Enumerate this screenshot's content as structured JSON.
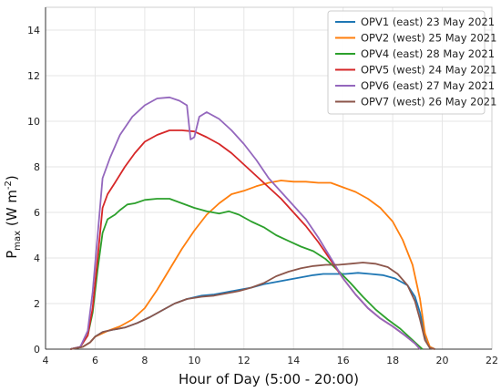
{
  "chart_data": {
    "type": "line",
    "xlabel": "Hour of Day (5:00 - 20:00)",
    "ylabel": {
      "base": "P",
      "sub": "max",
      "rest": " (W m",
      "sup": "-2",
      "close": ")"
    },
    "xlim": [
      4,
      22
    ],
    "ylim": [
      0,
      15
    ],
    "xticks": [
      "4",
      "6",
      "8",
      "10",
      "12",
      "14",
      "16",
      "18",
      "20",
      "22"
    ],
    "yticks": [
      "0",
      "2",
      "4",
      "6",
      "8",
      "10",
      "12",
      "14"
    ],
    "grid": true,
    "legend_position": "top-right",
    "series": [
      {
        "name": "OPV1 (east) 23 May 2021",
        "color": "#1f77b4",
        "points": [
          [
            5.0,
            0
          ],
          [
            5.5,
            0.1
          ],
          [
            5.8,
            0.3
          ],
          [
            6.0,
            0.55
          ],
          [
            6.3,
            0.75
          ],
          [
            6.7,
            0.85
          ],
          [
            7.2,
            0.95
          ],
          [
            7.7,
            1.15
          ],
          [
            8.2,
            1.4
          ],
          [
            8.7,
            1.7
          ],
          [
            9.2,
            2.0
          ],
          [
            9.7,
            2.2
          ],
          [
            10.3,
            2.35
          ],
          [
            10.8,
            2.4
          ],
          [
            11.3,
            2.5
          ],
          [
            11.8,
            2.6
          ],
          [
            12.3,
            2.7
          ],
          [
            12.8,
            2.85
          ],
          [
            13.3,
            2.95
          ],
          [
            13.8,
            3.05
          ],
          [
            14.3,
            3.15
          ],
          [
            14.8,
            3.25
          ],
          [
            15.2,
            3.3
          ],
          [
            15.6,
            3.3
          ],
          [
            16.1,
            3.3
          ],
          [
            16.6,
            3.35
          ],
          [
            17.1,
            3.3
          ],
          [
            17.6,
            3.25
          ],
          [
            18.1,
            3.1
          ],
          [
            18.6,
            2.8
          ],
          [
            18.9,
            2.3
          ],
          [
            19.1,
            1.6
          ],
          [
            19.3,
            0.6
          ],
          [
            19.5,
            0.1
          ],
          [
            19.7,
            0
          ]
        ]
      },
      {
        "name": "OPV2 (west) 25 May 2021",
        "color": "#ff7f0e",
        "points": [
          [
            5.0,
            0
          ],
          [
            5.5,
            0.1
          ],
          [
            5.8,
            0.3
          ],
          [
            6.0,
            0.55
          ],
          [
            6.5,
            0.8
          ],
          [
            7.0,
            1.0
          ],
          [
            7.5,
            1.3
          ],
          [
            8.0,
            1.8
          ],
          [
            8.5,
            2.6
          ],
          [
            9.0,
            3.5
          ],
          [
            9.5,
            4.4
          ],
          [
            10.0,
            5.2
          ],
          [
            10.5,
            5.9
          ],
          [
            11.0,
            6.4
          ],
          [
            11.5,
            6.8
          ],
          [
            12.0,
            6.95
          ],
          [
            12.5,
            7.15
          ],
          [
            13.0,
            7.3
          ],
          [
            13.5,
            7.4
          ],
          [
            14.0,
            7.35
          ],
          [
            14.5,
            7.35
          ],
          [
            15.0,
            7.3
          ],
          [
            15.5,
            7.3
          ],
          [
            16.0,
            7.1
          ],
          [
            16.5,
            6.9
          ],
          [
            17.0,
            6.6
          ],
          [
            17.5,
            6.2
          ],
          [
            18.0,
            5.6
          ],
          [
            18.4,
            4.8
          ],
          [
            18.8,
            3.7
          ],
          [
            19.1,
            2.2
          ],
          [
            19.3,
            0.7
          ],
          [
            19.5,
            0.1
          ],
          [
            19.7,
            0
          ]
        ]
      },
      {
        "name": "OPV4 (east) 28 May 2021",
        "color": "#2ca02c",
        "points": [
          [
            5.0,
            0
          ],
          [
            5.4,
            0.1
          ],
          [
            5.7,
            0.6
          ],
          [
            5.9,
            1.6
          ],
          [
            6.1,
            3.5
          ],
          [
            6.3,
            5.1
          ],
          [
            6.5,
            5.7
          ],
          [
            6.8,
            5.9
          ],
          [
            7.0,
            6.1
          ],
          [
            7.3,
            6.35
          ],
          [
            7.6,
            6.4
          ],
          [
            8.0,
            6.55
          ],
          [
            8.5,
            6.6
          ],
          [
            9.0,
            6.6
          ],
          [
            9.5,
            6.4
          ],
          [
            10.0,
            6.2
          ],
          [
            10.5,
            6.05
          ],
          [
            11.0,
            5.95
          ],
          [
            11.4,
            6.05
          ],
          [
            11.8,
            5.9
          ],
          [
            12.3,
            5.6
          ],
          [
            12.8,
            5.35
          ],
          [
            13.3,
            5.0
          ],
          [
            13.8,
            4.75
          ],
          [
            14.3,
            4.5
          ],
          [
            14.8,
            4.3
          ],
          [
            15.3,
            3.95
          ],
          [
            15.8,
            3.45
          ],
          [
            16.3,
            2.9
          ],
          [
            16.8,
            2.3
          ],
          [
            17.3,
            1.75
          ],
          [
            17.8,
            1.3
          ],
          [
            18.3,
            0.9
          ],
          [
            18.7,
            0.5
          ],
          [
            19.0,
            0.2
          ],
          [
            19.2,
            0
          ]
        ]
      },
      {
        "name": "OPV5 (west) 24 May 2021",
        "color": "#d62728",
        "points": [
          [
            5.0,
            0
          ],
          [
            5.4,
            0.1
          ],
          [
            5.7,
            0.6
          ],
          [
            5.9,
            1.8
          ],
          [
            6.1,
            4.0
          ],
          [
            6.3,
            6.2
          ],
          [
            6.5,
            6.8
          ],
          [
            6.8,
            7.3
          ],
          [
            7.2,
            8.0
          ],
          [
            7.6,
            8.6
          ],
          [
            8.0,
            9.1
          ],
          [
            8.5,
            9.4
          ],
          [
            9.0,
            9.6
          ],
          [
            9.5,
            9.6
          ],
          [
            10.0,
            9.55
          ],
          [
            10.5,
            9.3
          ],
          [
            11.0,
            9.0
          ],
          [
            11.5,
            8.6
          ],
          [
            12.0,
            8.1
          ],
          [
            12.5,
            7.6
          ],
          [
            13.0,
            7.1
          ],
          [
            13.5,
            6.6
          ],
          [
            14.0,
            6.0
          ],
          [
            14.5,
            5.4
          ],
          [
            15.0,
            4.7
          ],
          [
            15.5,
            3.9
          ],
          [
            16.0,
            3.1
          ],
          [
            16.5,
            2.4
          ],
          [
            17.0,
            1.8
          ],
          [
            17.5,
            1.35
          ],
          [
            18.0,
            1.0
          ],
          [
            18.5,
            0.6
          ],
          [
            18.9,
            0.25
          ],
          [
            19.1,
            0
          ]
        ]
      },
      {
        "name": "OPV6 (east) 27 May 2021",
        "color": "#9467bd",
        "points": [
          [
            5.0,
            0
          ],
          [
            5.4,
            0.1
          ],
          [
            5.7,
            0.8
          ],
          [
            5.9,
            2.5
          ],
          [
            6.1,
            5.0
          ],
          [
            6.3,
            7.5
          ],
          [
            6.6,
            8.4
          ],
          [
            7.0,
            9.4
          ],
          [
            7.5,
            10.2
          ],
          [
            8.0,
            10.7
          ],
          [
            8.5,
            11.0
          ],
          [
            9.0,
            11.05
          ],
          [
            9.4,
            10.9
          ],
          [
            9.7,
            10.7
          ],
          [
            9.85,
            9.2
          ],
          [
            10.0,
            9.3
          ],
          [
            10.2,
            10.2
          ],
          [
            10.5,
            10.4
          ],
          [
            11.0,
            10.1
          ],
          [
            11.5,
            9.6
          ],
          [
            12.0,
            9.0
          ],
          [
            12.5,
            8.3
          ],
          [
            13.0,
            7.5
          ],
          [
            13.5,
            6.9
          ],
          [
            14.0,
            6.3
          ],
          [
            14.5,
            5.7
          ],
          [
            15.0,
            4.9
          ],
          [
            15.5,
            4.0
          ],
          [
            16.0,
            3.1
          ],
          [
            16.5,
            2.4
          ],
          [
            17.0,
            1.8
          ],
          [
            17.5,
            1.35
          ],
          [
            18.0,
            1.0
          ],
          [
            18.5,
            0.6
          ],
          [
            18.9,
            0.25
          ],
          [
            19.1,
            0
          ]
        ]
      },
      {
        "name": "OPV7 (west) 26 May 2021",
        "color": "#8c564b",
        "points": [
          [
            5.0,
            0
          ],
          [
            5.5,
            0.1
          ],
          [
            5.8,
            0.3
          ],
          [
            6.0,
            0.55
          ],
          [
            6.3,
            0.75
          ],
          [
            6.7,
            0.85
          ],
          [
            7.2,
            0.95
          ],
          [
            7.7,
            1.15
          ],
          [
            8.2,
            1.4
          ],
          [
            8.7,
            1.7
          ],
          [
            9.2,
            2.0
          ],
          [
            9.7,
            2.2
          ],
          [
            10.3,
            2.3
          ],
          [
            10.8,
            2.35
          ],
          [
            11.3,
            2.45
          ],
          [
            11.8,
            2.55
          ],
          [
            12.3,
            2.7
          ],
          [
            12.8,
            2.9
          ],
          [
            13.3,
            3.2
          ],
          [
            13.8,
            3.4
          ],
          [
            14.3,
            3.55
          ],
          [
            14.8,
            3.65
          ],
          [
            15.3,
            3.7
          ],
          [
            15.8,
            3.7
          ],
          [
            16.3,
            3.75
          ],
          [
            16.8,
            3.8
          ],
          [
            17.3,
            3.75
          ],
          [
            17.8,
            3.6
          ],
          [
            18.2,
            3.3
          ],
          [
            18.6,
            2.8
          ],
          [
            18.9,
            2.1
          ],
          [
            19.1,
            1.3
          ],
          [
            19.3,
            0.4
          ],
          [
            19.5,
            0.05
          ],
          [
            19.7,
            0
          ]
        ]
      }
    ]
  }
}
